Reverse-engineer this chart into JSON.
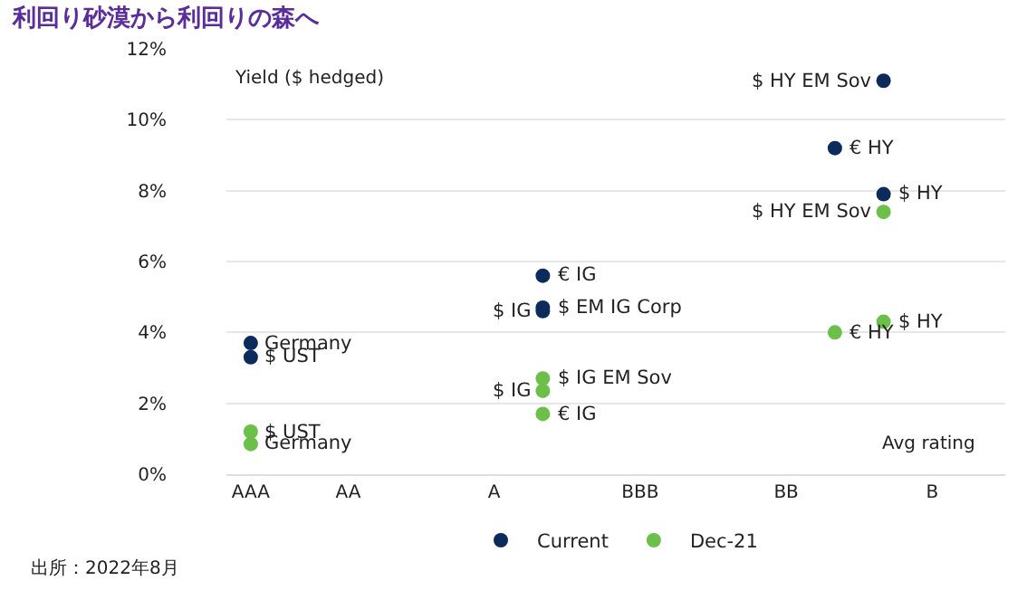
{
  "chart_data": {
    "type": "scatter",
    "title": "利回り砂漠から利回りの森へ",
    "ylabel": "Yield ($ hedged)",
    "xlabel": "Avg rating",
    "categories": [
      "AAA",
      null,
      "AA",
      null,
      null,
      "A",
      null,
      null,
      "BBB",
      null,
      null,
      "BB",
      null,
      null,
      "B",
      null
    ],
    "ylim": [
      0,
      12
    ],
    "yticks": [
      {
        "value": 0,
        "label": "0%"
      },
      {
        "value": 2,
        "label": "2%"
      },
      {
        "value": 4,
        "label": "4%"
      },
      {
        "value": 6,
        "label": "6%"
      },
      {
        "value": 8,
        "label": "8%"
      },
      {
        "value": 10,
        "label": "10%"
      },
      {
        "value": 12,
        "label": "12%"
      }
    ],
    "series": [
      {
        "name": "Current",
        "color": "#0b2b5c",
        "values": [
          3.7,
          null,
          null,
          null,
          null,
          null,
          5.6,
          null,
          null,
          null,
          null,
          null,
          9.2,
          11.1,
          null,
          null
        ]
      },
      {
        "color": "#0b2b5c",
        "values": [
          3.3,
          null,
          null,
          null,
          null,
          null,
          4.7,
          null,
          null,
          null,
          null,
          null,
          null,
          7.9,
          null,
          null
        ]
      },
      {
        "color": "#0b2b5c",
        "values": [
          null,
          null,
          null,
          null,
          null,
          null,
          4.6,
          null,
          null,
          null,
          null,
          null,
          null,
          null,
          null,
          null
        ]
      },
      {
        "name": "Dec-21",
        "color": "#6cc04a",
        "values": [
          1.2,
          null,
          null,
          null,
          null,
          null,
          2.7,
          null,
          null,
          null,
          null,
          null,
          4.0,
          7.4,
          null,
          null
        ]
      },
      {
        "color": "#6cc04a",
        "values": [
          0.85,
          null,
          null,
          null,
          null,
          null,
          2.35,
          null,
          null,
          null,
          null,
          null,
          null,
          4.3,
          null,
          null
        ]
      },
      {
        "color": "#6cc04a",
        "values": [
          null,
          null,
          null,
          null,
          null,
          null,
          1.7,
          null,
          null,
          null,
          null,
          null,
          null,
          null,
          null,
          null
        ]
      }
    ],
    "annotations": [
      "Germany",
      "€ IG",
      "€ HY",
      "$ HY EM Sov",
      "$ UST",
      "$ EM IG Corp",
      "$ HY",
      "$ IG",
      "$ UST",
      "$ IG EM Sov",
      "€ HY",
      "$ HY EM Sov",
      "Germany",
      "$ IG",
      "$ HY",
      "€ IG",
      "出所：2022年8月"
    ],
    "grid": "y",
    "legend": "bottom",
    "marker": "circle"
  }
}
